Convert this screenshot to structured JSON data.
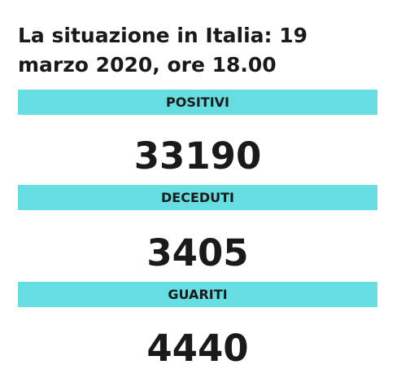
{
  "header": {
    "title": "La situazione in Italia: 19 marzo 2020, ore 18.00"
  },
  "items": [
    {
      "label": "POSITIVI",
      "value": 33190
    },
    {
      "label": "DECEDUTI",
      "value": 3405
    },
    {
      "label": "GUARITI",
      "value": 4440
    }
  ]
}
